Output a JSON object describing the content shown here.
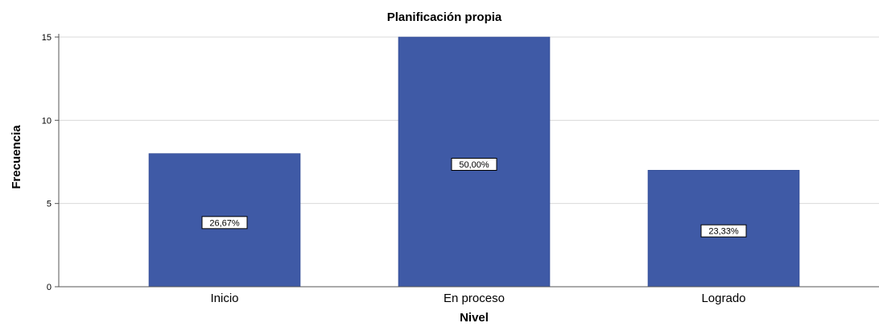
{
  "chart_data": {
    "type": "bar",
    "title": "Planificación propia",
    "xlabel": "Nivel",
    "ylabel": "Frecuencia",
    "categories": [
      "Inicio",
      "En proceso",
      "Logrado"
    ],
    "values": [
      8,
      15,
      7
    ],
    "data_labels": [
      "26,67%",
      "50,00%",
      "23,33%"
    ],
    "ylim": [
      0,
      15
    ],
    "yticks": [
      0,
      5,
      10,
      15
    ],
    "grid": true,
    "legend": "none",
    "colors": {
      "bar": "#3F5AA6",
      "grid": "#D9D9D9",
      "axis": "#555555",
      "text": "#000000"
    }
  }
}
